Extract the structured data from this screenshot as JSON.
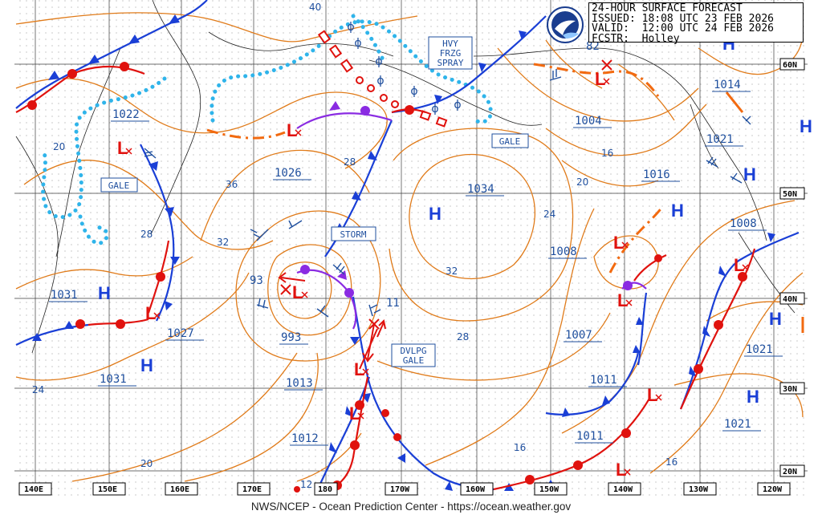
{
  "header": {
    "line1": "24-HOUR SURFACE FORECAST",
    "line2": "ISSUED: 18:08 UTC 23 FEB 2026",
    "line3": "VALID:  12:00 UTC 24 FEB 2026",
    "line4": "FCSTR:  Holley"
  },
  "footer": "NWS/NCEP - Ocean Prediction Center - https://ocean.weather.gov",
  "logo_icon": "noaa-logo-icon",
  "colors": {
    "isobar": "#e07b1a",
    "label": "#1f4f9e",
    "cold_front": "#1a3fd6",
    "warm_front": "#e0120e",
    "occluded": "#8a2be2",
    "freezing_spray": "#2fb4ea",
    "trough": "#f26a10"
  },
  "lon_labels": [
    "140E",
    "150E",
    "160E",
    "170E",
    "180",
    "170W",
    "160W",
    "150W",
    "140W",
    "130W",
    "120W"
  ],
  "lat_labels": [
    "60N",
    "50N",
    "40N",
    "30N",
    "20N"
  ],
  "warnings": {
    "hvy_frzg_spray": [
      "HVY",
      "FRZG",
      "SPRAY"
    ],
    "gale_aleutians": "GALE",
    "gale_west": "GALE",
    "storm": "STORM",
    "dvlpg_gale": [
      "DVLPG",
      "GALE"
    ]
  },
  "pressure_labels": [
    {
      "id": "p1022",
      "text": "1022"
    },
    {
      "id": "p1026",
      "text": "1026"
    },
    {
      "id": "p1034",
      "text": "1034"
    },
    {
      "id": "p1004",
      "text": "1004"
    },
    {
      "id": "p1014",
      "text": "1014"
    },
    {
      "id": "p1021a",
      "text": "1021"
    },
    {
      "id": "p1016",
      "text": "1016"
    },
    {
      "id": "p1008a",
      "text": "1008"
    },
    {
      "id": "p1008b",
      "text": "1008"
    },
    {
      "id": "p1031a",
      "text": "1031"
    },
    {
      "id": "p1027",
      "text": "1027"
    },
    {
      "id": "p1031b",
      "text": "1031"
    },
    {
      "id": "p993",
      "text": "993"
    },
    {
      "id": "p93",
      "text": "93"
    },
    {
      "id": "p1013",
      "text": "1013"
    },
    {
      "id": "p1012",
      "text": "1012"
    },
    {
      "id": "p1007",
      "text": "1007"
    },
    {
      "id": "p1011a",
      "text": "1011"
    },
    {
      "id": "p1011b",
      "text": "1011"
    },
    {
      "id": "p1021b",
      "text": "1021"
    },
    {
      "id": "p1021c",
      "text": "1021"
    },
    {
      "id": "p11",
      "text": "11"
    },
    {
      "id": "p82",
      "text": "82"
    }
  ],
  "isobar_values": [
    "40",
    "20",
    "36",
    "28",
    "32",
    "28",
    "24",
    "20",
    "16",
    "32",
    "28",
    "24",
    "16",
    "16",
    "20",
    "12"
  ]
}
